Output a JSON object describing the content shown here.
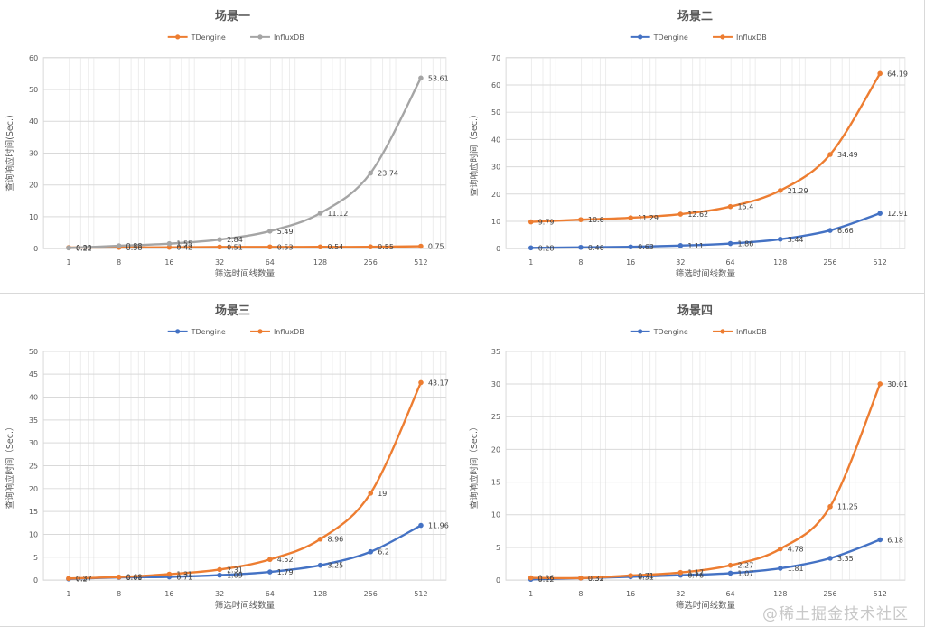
{
  "watermark": "@稀土掘金技术社区",
  "chart_data": [
    {
      "type": "line",
      "title": "场景一",
      "xlabel": "筛选时间线数量",
      "ylabel": "查询响应时间(Sec.)",
      "categories": [
        "1",
        "8",
        "16",
        "32",
        "64",
        "128",
        "256",
        "512"
      ],
      "ylim": [
        0,
        60
      ],
      "yticks": [
        0,
        10,
        20,
        30,
        40,
        50,
        60
      ],
      "legend_position": "top",
      "series": [
        {
          "name": "TDengine",
          "color": "#ed7d31",
          "values": [
            0.33,
            0.38,
            0.42,
            0.51,
            0.53,
            0.54,
            0.55,
            0.75
          ],
          "labels": [
            "0.33",
            "0.38",
            "0.42",
            "0.51",
            "0.53",
            "0.54",
            "0.55",
            "0.75"
          ]
        },
        {
          "name": "InfluxDB",
          "color": "#a5a5a5",
          "values": [
            0.22,
            0.88,
            1.55,
            2.84,
            5.49,
            11.12,
            23.74,
            53.61
          ],
          "labels": [
            "0.22",
            "0.88",
            "1.55",
            "2.84",
            "5.49",
            "11.12",
            "23.74",
            "53.61"
          ]
        }
      ]
    },
    {
      "type": "line",
      "title": "场景二",
      "xlabel": "筛选时间线数量",
      "ylabel": "查询响应时间（Sec.）",
      "categories": [
        "1",
        "8",
        "16",
        "32",
        "64",
        "128",
        "256",
        "512"
      ],
      "ylim": [
        0,
        70
      ],
      "yticks": [
        0,
        10,
        20,
        30,
        40,
        50,
        60,
        70
      ],
      "legend_position": "top",
      "series": [
        {
          "name": "TDengine",
          "color": "#4472c4",
          "values": [
            0.28,
            0.46,
            0.63,
            1.11,
            1.86,
            3.44,
            6.66,
            12.91
          ],
          "labels": [
            "0.28",
            "0.46",
            "0.63",
            "1.11",
            "1.86",
            "3.44",
            "6.66",
            "12.91"
          ]
        },
        {
          "name": "InfluxDB",
          "color": "#ed7d31",
          "values": [
            9.79,
            10.6,
            11.29,
            12.62,
            15.4,
            21.29,
            34.49,
            64.19
          ],
          "labels": [
            "9.79",
            "10.6",
            "11.29",
            "12.62",
            "15.4",
            "21.29",
            "34.49",
            "64.19"
          ]
        }
      ]
    },
    {
      "type": "line",
      "title": "场景三",
      "xlabel": "筛选时间线数量",
      "ylabel": "查询响应时间（Sec.）",
      "categories": [
        "1",
        "8",
        "16",
        "32",
        "64",
        "128",
        "256",
        "512"
      ],
      "ylim": [
        0,
        50
      ],
      "yticks": [
        0,
        5,
        10,
        15,
        20,
        25,
        30,
        35,
        40,
        45,
        50
      ],
      "legend_position": "top",
      "series": [
        {
          "name": "TDengine",
          "color": "#4472c4",
          "values": [
            0.27,
            0.61,
            0.71,
            1.09,
            1.79,
            3.25,
            6.2,
            11.96
          ],
          "labels": [
            "0.27",
            "0.61",
            "0.71",
            "1.09",
            "1.79",
            "3.25",
            "6.2",
            "11.96"
          ]
        },
        {
          "name": "InfluxDB",
          "color": "#ed7d31",
          "values": [
            0.37,
            0.68,
            1.31,
            2.31,
            4.52,
            8.96,
            19,
            43.17
          ],
          "labels": [
            "0.37",
            "0.68",
            "1.31",
            "2.31",
            "4.52",
            "8.96",
            "19",
            "43.17"
          ]
        }
      ]
    },
    {
      "type": "line",
      "title": "场景四",
      "xlabel": "筛选时间线数量",
      "ylabel": "查询响应时间（Sec.）",
      "categories": [
        "1",
        "8",
        "16",
        "32",
        "64",
        "128",
        "256",
        "512"
      ],
      "ylim": [
        0,
        35
      ],
      "yticks": [
        0,
        5,
        10,
        15,
        20,
        25,
        30,
        35
      ],
      "legend_position": "top",
      "series": [
        {
          "name": "TDengine",
          "color": "#4472c4",
          "values": [
            0.12,
            0.31,
            0.51,
            0.76,
            1.07,
            1.81,
            3.35,
            6.18
          ],
          "labels": [
            "0.12",
            "0.31",
            "0.51",
            "0.76",
            "1.07",
            "1.81",
            "3.35",
            "6.18"
          ]
        },
        {
          "name": "InfluxDB",
          "color": "#ed7d31",
          "values": [
            0.36,
            0.32,
            0.71,
            1.17,
            2.27,
            4.78,
            11.25,
            30.01
          ],
          "labels": [
            "0.36",
            "0.32",
            "0.71",
            "1.17",
            "2.27",
            "4.78",
            "11.25",
            "30.01"
          ]
        }
      ]
    }
  ]
}
